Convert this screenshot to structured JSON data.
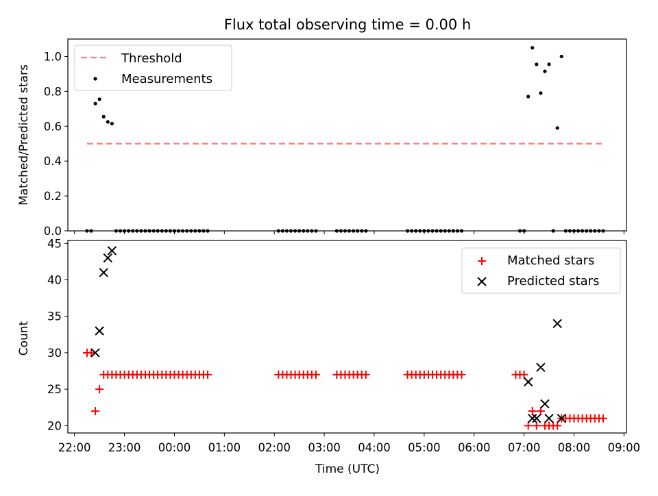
{
  "figure": {
    "title": "Flux total observing time = 0.00 h",
    "xlabel": "Time (UTC)"
  },
  "chart_data": [
    {
      "type": "scatter",
      "ylabel": "Matched/Predicted stars",
      "xlim": [
        "21:52",
        "09:03"
      ],
      "ylim": [
        0,
        1.1
      ],
      "yticks": [
        0.0,
        0.2,
        0.4,
        0.6,
        0.8,
        1.0
      ],
      "ytick_labels": [
        "0.0",
        "0.2",
        "0.4",
        "0.6",
        "0.8",
        "1.0"
      ],
      "legend_position": "upper-left",
      "threshold": {
        "name": "Threshold",
        "value": 0.5,
        "x_range": [
          "22:15",
          "08:35"
        ],
        "color": "#ff7f7f",
        "style": "dashed"
      },
      "series": [
        {
          "name": "Measurements",
          "marker": "dot",
          "color": "#000000",
          "points": [
            [
              "22:15",
              0
            ],
            [
              "22:20",
              0
            ],
            [
              "22:25",
              0.73
            ],
            [
              "22:30",
              0.755
            ],
            [
              "22:35",
              0.655
            ],
            [
              "22:40",
              0.625
            ],
            [
              "22:45",
              0.615
            ],
            [
              "22:50",
              0
            ],
            [
              "22:55",
              0
            ],
            [
              "23:00",
              0
            ],
            [
              "23:05",
              0
            ],
            [
              "23:10",
              0
            ],
            [
              "23:15",
              0
            ],
            [
              "23:20",
              0
            ],
            [
              "23:25",
              0
            ],
            [
              "23:30",
              0
            ],
            [
              "23:35",
              0
            ],
            [
              "23:40",
              0
            ],
            [
              "23:45",
              0
            ],
            [
              "23:50",
              0
            ],
            [
              "23:55",
              0
            ],
            [
              "00:00",
              0
            ],
            [
              "00:05",
              0
            ],
            [
              "00:10",
              0
            ],
            [
              "00:15",
              0
            ],
            [
              "00:20",
              0
            ],
            [
              "00:25",
              0
            ],
            [
              "00:30",
              0
            ],
            [
              "00:35",
              0
            ],
            [
              "00:40",
              0
            ],
            [
              "02:05",
              0
            ],
            [
              "02:10",
              0
            ],
            [
              "02:15",
              0
            ],
            [
              "02:20",
              0
            ],
            [
              "02:25",
              0
            ],
            [
              "02:30",
              0
            ],
            [
              "02:35",
              0
            ],
            [
              "02:40",
              0
            ],
            [
              "02:45",
              0
            ],
            [
              "02:50",
              0
            ],
            [
              "03:15",
              0
            ],
            [
              "03:20",
              0
            ],
            [
              "03:25",
              0
            ],
            [
              "03:30",
              0
            ],
            [
              "03:35",
              0
            ],
            [
              "03:40",
              0
            ],
            [
              "03:45",
              0
            ],
            [
              "03:50",
              0
            ],
            [
              "04:40",
              0
            ],
            [
              "04:45",
              0
            ],
            [
              "04:50",
              0
            ],
            [
              "04:55",
              0
            ],
            [
              "05:00",
              0
            ],
            [
              "05:05",
              0
            ],
            [
              "05:10",
              0
            ],
            [
              "05:15",
              0
            ],
            [
              "05:20",
              0
            ],
            [
              "05:25",
              0
            ],
            [
              "05:30",
              0
            ],
            [
              "05:35",
              0
            ],
            [
              "05:40",
              0
            ],
            [
              "05:45",
              0
            ],
            [
              "06:55",
              0
            ],
            [
              "07:00",
              0
            ],
            [
              "07:05",
              0.77
            ],
            [
              "07:10",
              1.05
            ],
            [
              "07:15",
              0.955
            ],
            [
              "07:20",
              0.79
            ],
            [
              "07:25",
              0.915
            ],
            [
              "07:30",
              0.955
            ],
            [
              "07:35",
              0
            ],
            [
              "07:40",
              0.59
            ],
            [
              "07:45",
              1.0
            ],
            [
              "07:50",
              0
            ],
            [
              "07:55",
              0
            ],
            [
              "08:00",
              0
            ],
            [
              "08:05",
              0
            ],
            [
              "08:10",
              0
            ],
            [
              "08:15",
              0
            ],
            [
              "08:20",
              0
            ],
            [
              "08:25",
              0
            ],
            [
              "08:30",
              0
            ],
            [
              "08:35",
              0
            ]
          ]
        }
      ]
    },
    {
      "type": "scatter",
      "ylabel": "Count",
      "xlim": [
        "21:52",
        "09:03"
      ],
      "ylim": [
        19,
        45.4
      ],
      "yticks": [
        20,
        25,
        30,
        35,
        40,
        45
      ],
      "ytick_labels": [
        "20",
        "25",
        "30",
        "35",
        "40",
        "45"
      ],
      "xticks": [
        "22:00",
        "23:00",
        "00:00",
        "01:00",
        "02:00",
        "03:00",
        "04:00",
        "05:00",
        "06:00",
        "07:00",
        "08:00",
        "09:00"
      ],
      "legend_position": "upper-right",
      "series": [
        {
          "name": "Matched stars",
          "marker": "plus",
          "color": "#ff0000",
          "points": [
            [
              "22:15",
              30
            ],
            [
              "22:20",
              30
            ],
            [
              "22:25",
              22
            ],
            [
              "22:30",
              25
            ],
            [
              "22:35",
              27
            ],
            [
              "22:40",
              27
            ],
            [
              "22:45",
              27
            ],
            [
              "22:50",
              27
            ],
            [
              "22:55",
              27
            ],
            [
              "23:00",
              27
            ],
            [
              "23:05",
              27
            ],
            [
              "23:10",
              27
            ],
            [
              "23:15",
              27
            ],
            [
              "23:20",
              27
            ],
            [
              "23:25",
              27
            ],
            [
              "23:30",
              27
            ],
            [
              "23:35",
              27
            ],
            [
              "23:40",
              27
            ],
            [
              "23:45",
              27
            ],
            [
              "23:50",
              27
            ],
            [
              "23:55",
              27
            ],
            [
              "00:00",
              27
            ],
            [
              "00:05",
              27
            ],
            [
              "00:10",
              27
            ],
            [
              "00:15",
              27
            ],
            [
              "00:20",
              27
            ],
            [
              "00:25",
              27
            ],
            [
              "00:30",
              27
            ],
            [
              "00:35",
              27
            ],
            [
              "00:40",
              27
            ],
            [
              "02:05",
              27
            ],
            [
              "02:10",
              27
            ],
            [
              "02:15",
              27
            ],
            [
              "02:20",
              27
            ],
            [
              "02:25",
              27
            ],
            [
              "02:30",
              27
            ],
            [
              "02:35",
              27
            ],
            [
              "02:40",
              27
            ],
            [
              "02:45",
              27
            ],
            [
              "02:50",
              27
            ],
            [
              "03:15",
              27
            ],
            [
              "03:20",
              27
            ],
            [
              "03:25",
              27
            ],
            [
              "03:30",
              27
            ],
            [
              "03:35",
              27
            ],
            [
              "03:40",
              27
            ],
            [
              "03:45",
              27
            ],
            [
              "03:50",
              27
            ],
            [
              "04:40",
              27
            ],
            [
              "04:45",
              27
            ],
            [
              "04:50",
              27
            ],
            [
              "04:55",
              27
            ],
            [
              "05:00",
              27
            ],
            [
              "05:05",
              27
            ],
            [
              "05:10",
              27
            ],
            [
              "05:15",
              27
            ],
            [
              "05:20",
              27
            ],
            [
              "05:25",
              27
            ],
            [
              "05:30",
              27
            ],
            [
              "05:35",
              27
            ],
            [
              "05:40",
              27
            ],
            [
              "05:45",
              27
            ],
            [
              "06:50",
              27
            ],
            [
              "06:55",
              27
            ],
            [
              "07:00",
              27
            ],
            [
              "07:05",
              20
            ],
            [
              "07:10",
              22
            ],
            [
              "07:15",
              20
            ],
            [
              "07:20",
              22
            ],
            [
              "07:25",
              20
            ],
            [
              "07:30",
              20
            ],
            [
              "07:35",
              20
            ],
            [
              "07:40",
              20
            ],
            [
              "07:45",
              21
            ],
            [
              "07:50",
              21
            ],
            [
              "07:55",
              21
            ],
            [
              "08:00",
              21
            ],
            [
              "08:05",
              21
            ],
            [
              "08:10",
              21
            ],
            [
              "08:15",
              21
            ],
            [
              "08:20",
              21
            ],
            [
              "08:25",
              21
            ],
            [
              "08:30",
              21
            ],
            [
              "08:35",
              21
            ]
          ]
        },
        {
          "name": "Predicted stars",
          "marker": "x",
          "color": "#000000",
          "points": [
            [
              "22:25",
              30
            ],
            [
              "22:30",
              33
            ],
            [
              "22:35",
              41
            ],
            [
              "22:40",
              43
            ],
            [
              "22:45",
              44
            ],
            [
              "07:05",
              26
            ],
            [
              "07:10",
              21
            ],
            [
              "07:15",
              21
            ],
            [
              "07:20",
              28
            ],
            [
              "07:25",
              23
            ],
            [
              "07:30",
              21
            ],
            [
              "07:40",
              34
            ],
            [
              "07:45",
              21
            ]
          ]
        }
      ]
    }
  ]
}
